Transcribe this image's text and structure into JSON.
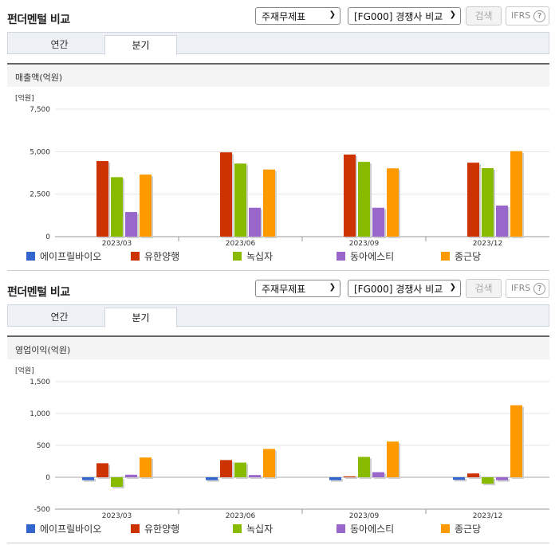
{
  "sections": [
    {
      "title": "펀더멘털 비교",
      "select_statement": "주재무제표",
      "select_compare": "[FG000] 경쟁사 비교",
      "search_label": "검색",
      "ifrs_label": "IFRS",
      "help_glyph": "?",
      "tabs": [
        "연간",
        "분기"
      ],
      "active_tab": "분기",
      "metric_title": "매출액(억원)"
    },
    {
      "title": "펀더멘털 비교",
      "select_statement": "주재무제표",
      "select_compare": "[FG000] 경쟁사 비교",
      "search_label": "검색",
      "ifrs_label": "IFRS",
      "help_glyph": "?",
      "tabs": [
        "연간",
        "분기"
      ],
      "active_tab": "분기",
      "metric_title": "영업이익(억원)"
    }
  ],
  "chart_data": [
    {
      "type": "bar",
      "unit_label": "[억원]",
      "categories": [
        "2023/03",
        "2023/06",
        "2023/09",
        "2023/12"
      ],
      "ylim": [
        0,
        7500
      ],
      "yticks": [
        0,
        2500,
        5000,
        7500
      ],
      "ytick_labels": [
        "0",
        "2,500",
        "5,000",
        "7,500"
      ],
      "legend_position": "bottom",
      "series": [
        {
          "name": "에이프릴바이오",
          "color": "#3366cc",
          "values": [
            0,
            0,
            0,
            0
          ]
        },
        {
          "name": "유한양행",
          "color": "#cc3300",
          "values": [
            4450,
            4960,
            4830,
            4350
          ]
        },
        {
          "name": "녹십자",
          "color": "#88bb00",
          "values": [
            3500,
            4300,
            4400,
            4030
          ]
        },
        {
          "name": "동아에스티",
          "color": "#9966cc",
          "values": [
            1450,
            1700,
            1700,
            1830
          ]
        },
        {
          "name": "종근당",
          "color": "#ff9900",
          "values": [
            3650,
            3950,
            4020,
            5030
          ]
        }
      ]
    },
    {
      "type": "bar",
      "unit_label": "[억원]",
      "categories": [
        "2023/03",
        "2023/06",
        "2023/09",
        "2023/12"
      ],
      "ylim": [
        -500,
        1500
      ],
      "yticks": [
        -500,
        0,
        500,
        1000,
        1500
      ],
      "ytick_labels": [
        "-500",
        "0",
        "500",
        "1,000",
        "1,500"
      ],
      "legend_position": "bottom",
      "series": [
        {
          "name": "에이프릴바이오",
          "color": "#3366cc",
          "values": [
            -45,
            -45,
            -45,
            -40
          ]
        },
        {
          "name": "유한양행",
          "color": "#cc3300",
          "values": [
            220,
            270,
            15,
            60
          ]
        },
        {
          "name": "녹십자",
          "color": "#88bb00",
          "values": [
            -150,
            230,
            320,
            -100
          ]
        },
        {
          "name": "동아에스티",
          "color": "#9966cc",
          "values": [
            40,
            35,
            80,
            -45
          ]
        },
        {
          "name": "종근당",
          "color": "#ff9900",
          "values": [
            310,
            445,
            560,
            1130
          ]
        }
      ]
    }
  ]
}
